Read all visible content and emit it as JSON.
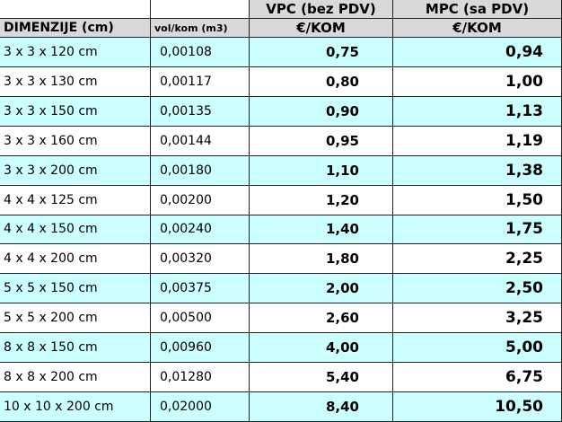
{
  "header": {
    "vpc": "VPC (bez PDV)",
    "mpc": "MPC (sa PDV)",
    "dimensions": "DIMENZIJE (cm)",
    "volume": "vol/kom (m3)",
    "vpc_unit": "€/KOM",
    "mpc_unit": "€/KOM"
  },
  "table": {
    "rows": [
      [
        "3 x 3 x 120 cm",
        "0,00108",
        "0,75",
        "0,94"
      ],
      [
        "3 x 3 x 130 cm",
        "0,00117",
        "0,80",
        "1,00"
      ],
      [
        "3 x 3 x 150 cm",
        "0,00135",
        "0,90",
        "1,13"
      ],
      [
        "3 x 3 x 160 cm",
        "0,00144",
        "0,95",
        "1,19"
      ],
      [
        "3 x 3 x 200 cm",
        "0,00180",
        "1,10",
        "1,38"
      ],
      [
        "4 x 4 x 125 cm",
        "0,00200",
        "1,20",
        "1,50"
      ],
      [
        "4 x 4 x 150 cm",
        "0,00240",
        "1,40",
        "1,75"
      ],
      [
        "4 x 4 x 200 cm",
        "0,00320",
        "1,80",
        "2,25"
      ],
      [
        "5 x 5 x 150 cm",
        "0,00375",
        "2,00",
        "2,50"
      ],
      [
        "5 x 5 x 200 cm",
        "0,00500",
        "2,60",
        "3,25"
      ],
      [
        "8 x 8 x 150 cm",
        "0,00960",
        "4,00",
        "5,00"
      ],
      [
        "8 x 8 x 200 cm",
        "0,01280",
        "5,40",
        "6,75"
      ],
      [
        "10 x 10 x 200 cm",
        "0,02000",
        "8,40",
        "10,50"
      ]
    ]
  }
}
